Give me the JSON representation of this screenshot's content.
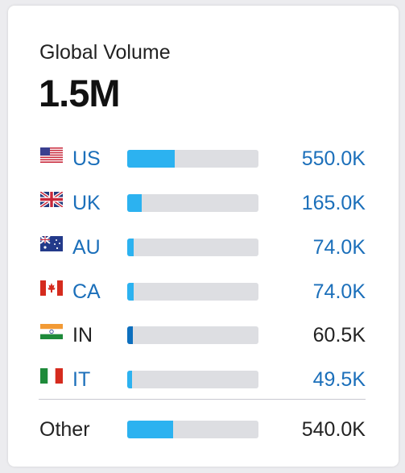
{
  "widget": {
    "label": "Global Volume",
    "total": "1.5M"
  },
  "rows": [
    {
      "code": "US",
      "flag": "us-flag-icon",
      "value": "550.0K",
      "share": 0.36,
      "link": true
    },
    {
      "code": "UK",
      "flag": "uk-flag-icon",
      "value": "165.0K",
      "share": 0.11,
      "link": true
    },
    {
      "code": "AU",
      "flag": "au-flag-icon",
      "value": "74.0K",
      "share": 0.05,
      "link": true
    },
    {
      "code": "CA",
      "flag": "ca-flag-icon",
      "value": "74.0K",
      "share": 0.05,
      "link": true
    },
    {
      "code": "IN",
      "flag": "in-flag-icon",
      "value": "60.5K",
      "share": 0.04,
      "link": false
    },
    {
      "code": "IT",
      "flag": "it-flag-icon",
      "value": "49.5K",
      "share": 0.03,
      "link": true
    }
  ],
  "other": {
    "label": "Other",
    "value": "540.0K",
    "share": 0.35
  },
  "colors": {
    "link": "#1b6fba",
    "text": "#222222",
    "bar_fill": "#2cb2f0",
    "bar_fill_dark": "#0d6fbe",
    "bar_track": "#dddee2"
  }
}
